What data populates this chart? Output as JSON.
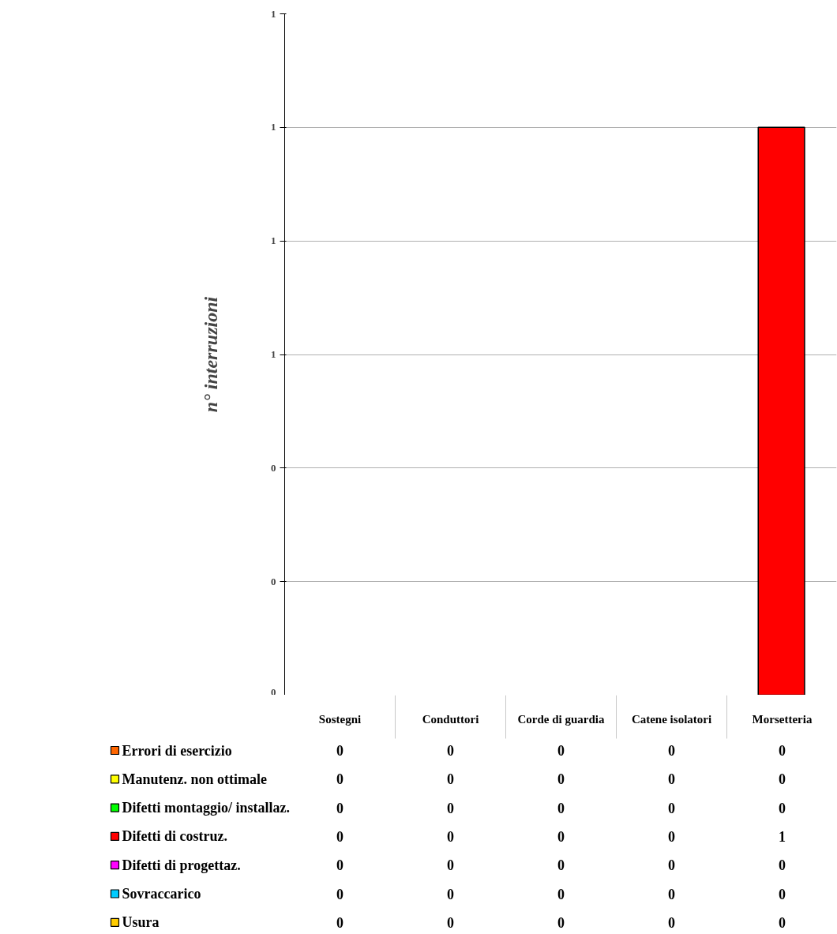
{
  "chart_data": {
    "type": "bar",
    "stacked": true,
    "ylabel": "n° interruzioni",
    "categories": [
      "Sostegni",
      "Conduttori",
      "Corde di guardia",
      "Catene isolatori",
      "Morsetteria"
    ],
    "series": [
      {
        "name": "Errori di esercizio",
        "color": "#ff6600",
        "values": [
          0,
          0,
          0,
          0,
          0
        ]
      },
      {
        "name": "Manutenz. non ottimale",
        "color": "#ffff00",
        "values": [
          0,
          0,
          0,
          0,
          0
        ]
      },
      {
        "name": "Difetti montaggio/ installaz.",
        "color": "#00ff00",
        "values": [
          0,
          0,
          0,
          0,
          0
        ]
      },
      {
        "name": "Difetti di costruz.",
        "color": "#ff0000",
        "values": [
          0,
          0,
          0,
          0,
          1
        ]
      },
      {
        "name": "Difetti di progettaz.",
        "color": "#ff00ff",
        "values": [
          0,
          0,
          0,
          0,
          0
        ]
      },
      {
        "name": "Sovraccarico",
        "color": "#00ccff",
        "values": [
          0,
          0,
          0,
          0,
          0
        ]
      },
      {
        "name": "Usura",
        "color": "#ffcc00",
        "values": [
          0,
          0,
          0,
          0,
          0
        ]
      }
    ],
    "ylim": [
      0,
      1.2
    ],
    "yticks": [
      0,
      {
        "value": 0.2,
        "label": "0"
      },
      {
        "value": 0.4,
        "label": "0"
      },
      {
        "value": 0.6,
        "label": "1"
      },
      {
        "value": 0.8,
        "label": "1"
      },
      {
        "value": 1.0,
        "label": "1"
      },
      {
        "value": 1.2,
        "label": "1"
      }
    ],
    "grid": "y",
    "legend": "bottom",
    "data_labels": true
  }
}
